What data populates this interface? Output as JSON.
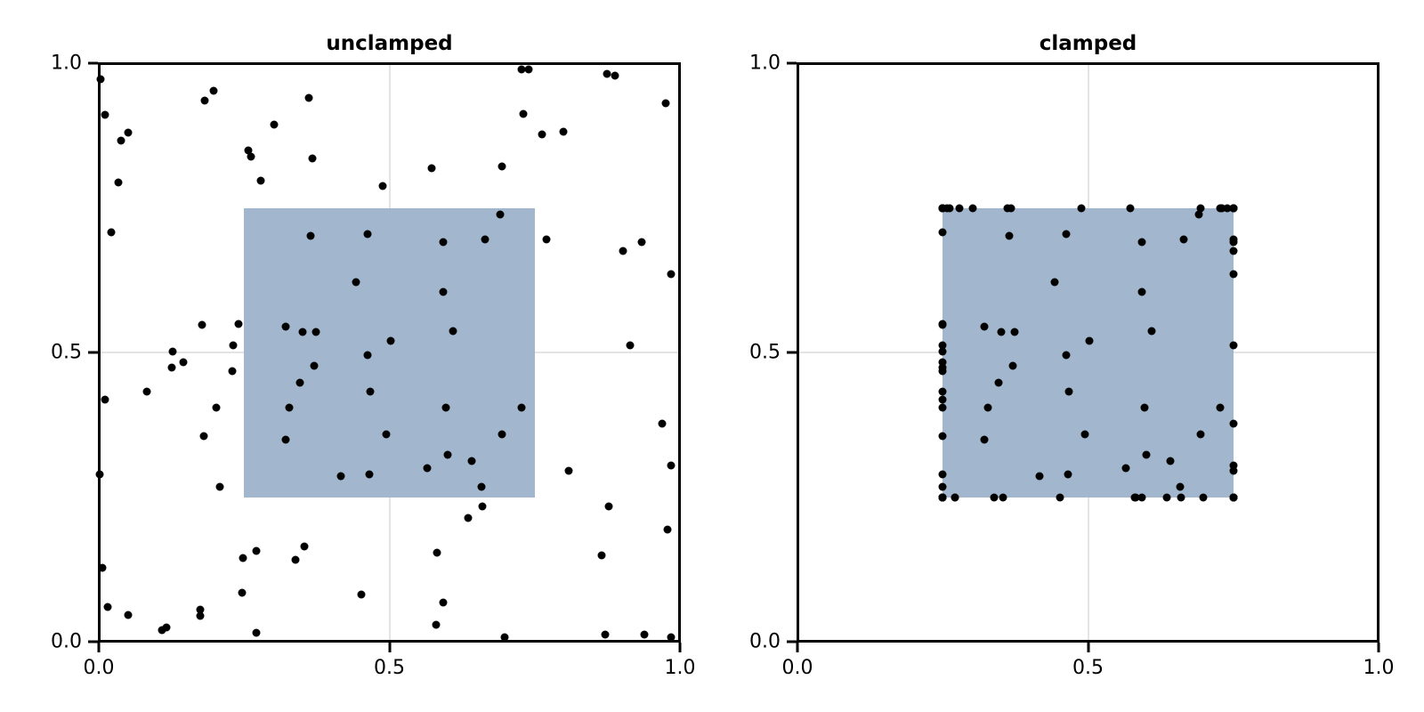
{
  "figure": {
    "background_color": "#ffffff",
    "spine_color": "#000000",
    "grid_color": "#e4e4e4",
    "tick_font_size": 22,
    "title_font_size": 23
  },
  "chart_data": [
    {
      "type": "scatter",
      "title": "unclamped",
      "xlim": [
        0.0,
        1.0
      ],
      "ylim": [
        0.0,
        1.0
      ],
      "xticks": [
        0.0,
        0.5,
        1.0
      ],
      "yticks": [
        0.0,
        0.5,
        1.0
      ],
      "xtick_labels": [
        "0.0",
        "0.5",
        "1.0"
      ],
      "ytick_labels": [
        "0.0",
        "0.5",
        "1.0"
      ],
      "grid": true,
      "legend": null,
      "marker_color": "#000000",
      "marker_size": 9,
      "region": {
        "x0": 0.25,
        "x1": 0.75,
        "y0": 0.25,
        "y1": 0.75,
        "color": "#a2b7cd"
      },
      "points": [
        [
          0.003,
          0.972
        ],
        [
          0.01,
          0.911
        ],
        [
          0.05,
          0.88
        ],
        [
          0.038,
          0.866
        ],
        [
          0.034,
          0.794
        ],
        [
          0.021,
          0.707
        ],
        [
          0.198,
          0.952
        ],
        [
          0.183,
          0.935
        ],
        [
          0.361,
          0.94
        ],
        [
          0.302,
          0.894
        ],
        [
          0.258,
          0.849
        ],
        [
          0.262,
          0.838
        ],
        [
          0.368,
          0.835
        ],
        [
          0.278,
          0.797
        ],
        [
          0.364,
          0.701
        ],
        [
          0.463,
          0.704
        ],
        [
          0.443,
          0.622
        ],
        [
          0.177,
          0.547
        ],
        [
          0.241,
          0.55
        ],
        [
          0.322,
          0.544
        ],
        [
          0.351,
          0.536
        ],
        [
          0.374,
          0.536
        ],
        [
          0.232,
          0.513
        ],
        [
          0.728,
          0.99
        ],
        [
          0.739,
          0.99
        ],
        [
          0.874,
          0.981
        ],
        [
          0.888,
          0.978
        ],
        [
          0.976,
          0.931
        ],
        [
          0.731,
          0.912
        ],
        [
          0.762,
          0.877
        ],
        [
          0.8,
          0.882
        ],
        [
          0.572,
          0.818
        ],
        [
          0.694,
          0.821
        ],
        [
          0.489,
          0.787
        ],
        [
          0.691,
          0.738
        ],
        [
          0.592,
          0.691
        ],
        [
          0.665,
          0.695
        ],
        [
          0.77,
          0.696
        ],
        [
          0.934,
          0.691
        ],
        [
          0.902,
          0.675
        ],
        [
          0.985,
          0.636
        ],
        [
          0.593,
          0.605
        ],
        [
          0.609,
          0.537
        ],
        [
          0.503,
          0.52
        ],
        [
          0.127,
          0.501
        ],
        [
          0.146,
          0.483
        ],
        [
          0.126,
          0.474
        ],
        [
          0.23,
          0.467
        ],
        [
          0.082,
          0.432
        ],
        [
          0.01,
          0.418
        ],
        [
          0.202,
          0.404
        ],
        [
          0.18,
          0.356
        ],
        [
          0.002,
          0.29
        ],
        [
          0.209,
          0.268
        ],
        [
          0.006,
          0.128
        ],
        [
          0.015,
          0.06
        ],
        [
          0.051,
          0.046
        ],
        [
          0.108,
          0.02
        ],
        [
          0.117,
          0.025
        ],
        [
          0.175,
          0.055
        ],
        [
          0.175,
          0.045
        ],
        [
          0.271,
          0.157
        ],
        [
          0.248,
          0.144
        ],
        [
          0.353,
          0.164
        ],
        [
          0.338,
          0.141
        ],
        [
          0.246,
          0.085
        ],
        [
          0.271,
          0.016
        ],
        [
          0.452,
          0.082
        ],
        [
          0.371,
          0.477
        ],
        [
          0.346,
          0.448
        ],
        [
          0.463,
          0.496
        ],
        [
          0.467,
          0.433
        ],
        [
          0.327,
          0.405
        ],
        [
          0.322,
          0.35
        ],
        [
          0.416,
          0.286
        ],
        [
          0.466,
          0.29
        ],
        [
          0.915,
          0.513
        ],
        [
          0.597,
          0.404
        ],
        [
          0.728,
          0.404
        ],
        [
          0.494,
          0.359
        ],
        [
          0.694,
          0.358
        ],
        [
          0.601,
          0.323
        ],
        [
          0.642,
          0.313
        ],
        [
          0.565,
          0.3
        ],
        [
          0.658,
          0.268
        ],
        [
          0.808,
          0.295
        ],
        [
          0.97,
          0.377
        ],
        [
          0.984,
          0.304
        ],
        [
          0.66,
          0.234
        ],
        [
          0.636,
          0.214
        ],
        [
          0.878,
          0.234
        ],
        [
          0.979,
          0.194
        ],
        [
          0.582,
          0.154
        ],
        [
          0.866,
          0.149
        ],
        [
          0.592,
          0.067
        ],
        [
          0.58,
          0.03
        ],
        [
          0.699,
          0.008
        ],
        [
          0.872,
          0.012
        ],
        [
          0.939,
          0.012
        ],
        [
          0.985,
          0.008
        ]
      ]
    },
    {
      "type": "scatter",
      "title": "clamped",
      "xlim": [
        0.0,
        1.0
      ],
      "ylim": [
        0.0,
        1.0
      ],
      "xticks": [
        0.0,
        0.5,
        1.0
      ],
      "yticks": [
        0.0,
        0.5,
        1.0
      ],
      "xtick_labels": [
        "0.0",
        "0.5",
        "1.0"
      ],
      "ytick_labels": [
        "0.0",
        "0.5",
        "1.0"
      ],
      "grid": true,
      "legend": null,
      "marker_color": "#000000",
      "marker_size": 9,
      "region": {
        "x0": 0.25,
        "x1": 0.75,
        "y0": 0.25,
        "y1": 0.75,
        "color": "#a2b7cd"
      },
      "points": [
        [
          0.25,
          0.75
        ],
        [
          0.25,
          0.75
        ],
        [
          0.25,
          0.75
        ],
        [
          0.25,
          0.75
        ],
        [
          0.25,
          0.75
        ],
        [
          0.25,
          0.707
        ],
        [
          0.25,
          0.75
        ],
        [
          0.25,
          0.75
        ],
        [
          0.361,
          0.75
        ],
        [
          0.302,
          0.75
        ],
        [
          0.258,
          0.75
        ],
        [
          0.262,
          0.75
        ],
        [
          0.368,
          0.75
        ],
        [
          0.278,
          0.75
        ],
        [
          0.364,
          0.701
        ],
        [
          0.463,
          0.704
        ],
        [
          0.443,
          0.622
        ],
        [
          0.25,
          0.547
        ],
        [
          0.25,
          0.55
        ],
        [
          0.322,
          0.544
        ],
        [
          0.351,
          0.536
        ],
        [
          0.374,
          0.536
        ],
        [
          0.25,
          0.513
        ],
        [
          0.728,
          0.75
        ],
        [
          0.739,
          0.75
        ],
        [
          0.75,
          0.75
        ],
        [
          0.75,
          0.75
        ],
        [
          0.75,
          0.75
        ],
        [
          0.731,
          0.75
        ],
        [
          0.75,
          0.75
        ],
        [
          0.75,
          0.75
        ],
        [
          0.572,
          0.75
        ],
        [
          0.694,
          0.75
        ],
        [
          0.489,
          0.75
        ],
        [
          0.691,
          0.738
        ],
        [
          0.592,
          0.691
        ],
        [
          0.665,
          0.695
        ],
        [
          0.75,
          0.696
        ],
        [
          0.75,
          0.691
        ],
        [
          0.75,
          0.675
        ],
        [
          0.75,
          0.636
        ],
        [
          0.593,
          0.605
        ],
        [
          0.609,
          0.537
        ],
        [
          0.503,
          0.52
        ],
        [
          0.25,
          0.501
        ],
        [
          0.25,
          0.483
        ],
        [
          0.25,
          0.474
        ],
        [
          0.25,
          0.467
        ],
        [
          0.25,
          0.432
        ],
        [
          0.25,
          0.418
        ],
        [
          0.25,
          0.404
        ],
        [
          0.25,
          0.356
        ],
        [
          0.25,
          0.29
        ],
        [
          0.25,
          0.268
        ],
        [
          0.25,
          0.25
        ],
        [
          0.25,
          0.25
        ],
        [
          0.25,
          0.25
        ],
        [
          0.25,
          0.25
        ],
        [
          0.25,
          0.25
        ],
        [
          0.25,
          0.25
        ],
        [
          0.25,
          0.25
        ],
        [
          0.271,
          0.25
        ],
        [
          0.25,
          0.25
        ],
        [
          0.353,
          0.25
        ],
        [
          0.338,
          0.25
        ],
        [
          0.25,
          0.25
        ],
        [
          0.271,
          0.25
        ],
        [
          0.452,
          0.25
        ],
        [
          0.371,
          0.477
        ],
        [
          0.346,
          0.448
        ],
        [
          0.463,
          0.496
        ],
        [
          0.467,
          0.433
        ],
        [
          0.327,
          0.405
        ],
        [
          0.322,
          0.35
        ],
        [
          0.416,
          0.286
        ],
        [
          0.466,
          0.29
        ],
        [
          0.75,
          0.513
        ],
        [
          0.597,
          0.404
        ],
        [
          0.728,
          0.404
        ],
        [
          0.494,
          0.359
        ],
        [
          0.694,
          0.358
        ],
        [
          0.601,
          0.323
        ],
        [
          0.642,
          0.313
        ],
        [
          0.565,
          0.3
        ],
        [
          0.658,
          0.268
        ],
        [
          0.75,
          0.295
        ],
        [
          0.75,
          0.377
        ],
        [
          0.75,
          0.304
        ],
        [
          0.66,
          0.25
        ],
        [
          0.636,
          0.25
        ],
        [
          0.75,
          0.25
        ],
        [
          0.75,
          0.25
        ],
        [
          0.582,
          0.25
        ],
        [
          0.75,
          0.25
        ],
        [
          0.592,
          0.25
        ],
        [
          0.58,
          0.25
        ],
        [
          0.699,
          0.25
        ],
        [
          0.75,
          0.25
        ],
        [
          0.75,
          0.25
        ],
        [
          0.75,
          0.25
        ]
      ]
    }
  ]
}
